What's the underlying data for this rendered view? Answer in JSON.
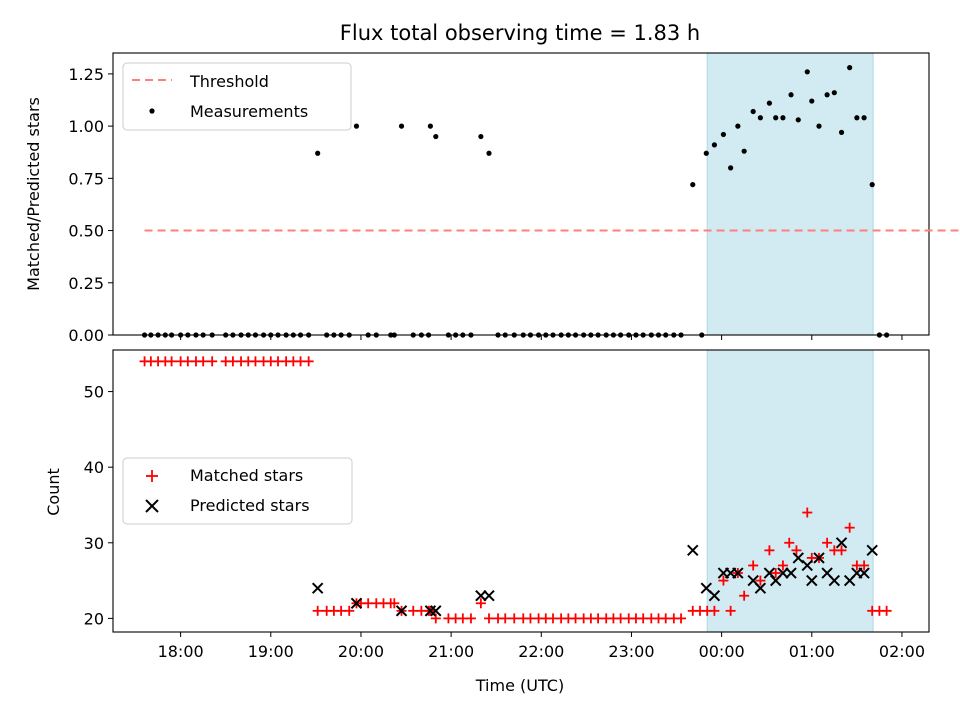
{
  "chart_data": {
    "type": "scatter",
    "title": "Flux total observing time = 1.83 h",
    "x_axis": {
      "label": "Time (UTC)",
      "unit": "hours since 00:00 UTC of first night (values >24 are after midnight)",
      "range": [
        17.25,
        26.3
      ],
      "ticks": [
        {
          "v": 18,
          "label": "18:00"
        },
        {
          "v": 19,
          "label": "19:00"
        },
        {
          "v": 20,
          "label": "20:00"
        },
        {
          "v": 21,
          "label": "21:00"
        },
        {
          "v": 22,
          "label": "22:00"
        },
        {
          "v": 23,
          "label": "23:00"
        },
        {
          "v": 24,
          "label": "00:00"
        },
        {
          "v": 25,
          "label": "01:00"
        },
        {
          "v": 26,
          "label": "02:00"
        }
      ]
    },
    "shaded_span": {
      "x0": 23.84,
      "x1": 25.68,
      "color": "#add8e6"
    },
    "top_panel": {
      "ylabel": "Matched/Predicted stars",
      "ylim": [
        0,
        1.35
      ],
      "yticks": [
        "0.00",
        "0.25",
        "0.50",
        "0.75",
        "1.00",
        "1.25"
      ],
      "threshold": {
        "name": "Threshold",
        "y": 0.5,
        "x": [
          17.6,
          26.85
        ],
        "color": "#ff7f7f"
      },
      "measurements": {
        "name": "Measurements",
        "color": "#000000",
        "points": [
          [
            17.6,
            0
          ],
          [
            17.67,
            0
          ],
          [
            17.75,
            0
          ],
          [
            17.83,
            0
          ],
          [
            17.9,
            0
          ],
          [
            18.0,
            0
          ],
          [
            18.08,
            0
          ],
          [
            18.17,
            0
          ],
          [
            18.25,
            0
          ],
          [
            18.35,
            0
          ],
          [
            18.5,
            0
          ],
          [
            18.58,
            0
          ],
          [
            18.67,
            0
          ],
          [
            18.75,
            0
          ],
          [
            18.83,
            0
          ],
          [
            18.92,
            0
          ],
          [
            19.0,
            0
          ],
          [
            19.08,
            0
          ],
          [
            19.17,
            0
          ],
          [
            19.25,
            0
          ],
          [
            19.33,
            0
          ],
          [
            19.42,
            0
          ],
          [
            19.52,
            0.87
          ],
          [
            19.62,
            0
          ],
          [
            19.7,
            0
          ],
          [
            19.78,
            0
          ],
          [
            19.87,
            0
          ],
          [
            19.95,
            1.0
          ],
          [
            20.08,
            0
          ],
          [
            20.17,
            0
          ],
          [
            20.33,
            0
          ],
          [
            20.37,
            0
          ],
          [
            20.45,
            1.0
          ],
          [
            20.58,
            0
          ],
          [
            20.67,
            0
          ],
          [
            20.75,
            0
          ],
          [
            20.77,
            1.0
          ],
          [
            20.83,
            0.95
          ],
          [
            20.97,
            0
          ],
          [
            21.05,
            0
          ],
          [
            21.13,
            0
          ],
          [
            21.22,
            0
          ],
          [
            21.33,
            0.95
          ],
          [
            21.42,
            0.87
          ],
          [
            21.52,
            0
          ],
          [
            21.6,
            0
          ],
          [
            21.7,
            0
          ],
          [
            21.8,
            0
          ],
          [
            21.88,
            0
          ],
          [
            21.97,
            0
          ],
          [
            22.05,
            0
          ],
          [
            22.13,
            0
          ],
          [
            22.22,
            0
          ],
          [
            22.3,
            0
          ],
          [
            22.38,
            0
          ],
          [
            22.47,
            0
          ],
          [
            22.55,
            0
          ],
          [
            22.63,
            0
          ],
          [
            22.72,
            0
          ],
          [
            22.8,
            0
          ],
          [
            22.88,
            0
          ],
          [
            22.97,
            0
          ],
          [
            23.05,
            0
          ],
          [
            23.13,
            0
          ],
          [
            23.22,
            0
          ],
          [
            23.3,
            0
          ],
          [
            23.38,
            0
          ],
          [
            23.47,
            0
          ],
          [
            23.55,
            0
          ],
          [
            23.68,
            0.72
          ],
          [
            23.78,
            0
          ],
          [
            23.83,
            0.87
          ],
          [
            23.92,
            0.91
          ],
          [
            24.02,
            0.96
          ],
          [
            24.1,
            0.8
          ],
          [
            24.18,
            1.0
          ],
          [
            24.25,
            0.88
          ],
          [
            24.35,
            1.07
          ],
          [
            24.43,
            1.04
          ],
          [
            24.53,
            1.11
          ],
          [
            24.6,
            1.04
          ],
          [
            24.68,
            1.04
          ],
          [
            24.77,
            1.15
          ],
          [
            24.85,
            1.03
          ],
          [
            24.95,
            1.26
          ],
          [
            25.0,
            1.12
          ],
          [
            25.08,
            1.0
          ],
          [
            25.17,
            1.15
          ],
          [
            25.25,
            1.16
          ],
          [
            25.33,
            0.97
          ],
          [
            25.42,
            1.28
          ],
          [
            25.5,
            1.04
          ],
          [
            25.58,
            1.04
          ],
          [
            25.67,
            0.72
          ],
          [
            25.75,
            0
          ],
          [
            25.83,
            0
          ]
        ]
      },
      "legend": {
        "placement": "upper-left",
        "entries": [
          "Threshold",
          "Measurements"
        ]
      }
    },
    "bottom_panel": {
      "ylabel": "Count",
      "ylim": [
        18.2,
        55.5
      ],
      "yticks": [
        "20",
        "30",
        "40",
        "50"
      ],
      "matched": {
        "name": "Matched stars",
        "color": "#ff0000",
        "marker": "plus",
        "points": [
          [
            17.6,
            54
          ],
          [
            17.67,
            54
          ],
          [
            17.75,
            54
          ],
          [
            17.83,
            54
          ],
          [
            17.9,
            54
          ],
          [
            18.0,
            54
          ],
          [
            18.08,
            54
          ],
          [
            18.17,
            54
          ],
          [
            18.25,
            54
          ],
          [
            18.35,
            54
          ],
          [
            18.5,
            54
          ],
          [
            18.58,
            54
          ],
          [
            18.67,
            54
          ],
          [
            18.75,
            54
          ],
          [
            18.83,
            54
          ],
          [
            18.92,
            54
          ],
          [
            19.0,
            54
          ],
          [
            19.08,
            54
          ],
          [
            19.17,
            54
          ],
          [
            19.25,
            54
          ],
          [
            19.33,
            54
          ],
          [
            19.42,
            54
          ],
          [
            19.52,
            21
          ],
          [
            19.62,
            21
          ],
          [
            19.7,
            21
          ],
          [
            19.78,
            21
          ],
          [
            19.87,
            21
          ],
          [
            19.95,
            22
          ],
          [
            20.0,
            22
          ],
          [
            20.08,
            22
          ],
          [
            20.17,
            22
          ],
          [
            20.25,
            22
          ],
          [
            20.33,
            22
          ],
          [
            20.37,
            22
          ],
          [
            20.45,
            21
          ],
          [
            20.58,
            21
          ],
          [
            20.67,
            21
          ],
          [
            20.75,
            21
          ],
          [
            20.77,
            21
          ],
          [
            20.83,
            20
          ],
          [
            20.97,
            20
          ],
          [
            21.05,
            20
          ],
          [
            21.13,
            20
          ],
          [
            21.22,
            20
          ],
          [
            21.33,
            22
          ],
          [
            21.42,
            20
          ],
          [
            21.52,
            20
          ],
          [
            21.6,
            20
          ],
          [
            21.7,
            20
          ],
          [
            21.8,
            20
          ],
          [
            21.88,
            20
          ],
          [
            21.97,
            20
          ],
          [
            22.05,
            20
          ],
          [
            22.13,
            20
          ],
          [
            22.22,
            20
          ],
          [
            22.3,
            20
          ],
          [
            22.38,
            20
          ],
          [
            22.47,
            20
          ],
          [
            22.55,
            20
          ],
          [
            22.63,
            20
          ],
          [
            22.72,
            20
          ],
          [
            22.8,
            20
          ],
          [
            22.88,
            20
          ],
          [
            22.97,
            20
          ],
          [
            23.05,
            20
          ],
          [
            23.13,
            20
          ],
          [
            23.22,
            20
          ],
          [
            23.3,
            20
          ],
          [
            23.38,
            20
          ],
          [
            23.47,
            20
          ],
          [
            23.55,
            20
          ],
          [
            23.68,
            21
          ],
          [
            23.76,
            21
          ],
          [
            23.84,
            21
          ],
          [
            23.92,
            21
          ],
          [
            24.02,
            25
          ],
          [
            24.1,
            21
          ],
          [
            24.18,
            26
          ],
          [
            24.25,
            23
          ],
          [
            24.35,
            27
          ],
          [
            24.43,
            25
          ],
          [
            24.53,
            29
          ],
          [
            24.6,
            26
          ],
          [
            24.68,
            27
          ],
          [
            24.75,
            30
          ],
          [
            24.83,
            29
          ],
          [
            24.95,
            34
          ],
          [
            25.0,
            28
          ],
          [
            25.08,
            28
          ],
          [
            25.17,
            30
          ],
          [
            25.25,
            29
          ],
          [
            25.33,
            29
          ],
          [
            25.42,
            32
          ],
          [
            25.5,
            27
          ],
          [
            25.58,
            27
          ],
          [
            25.67,
            21
          ],
          [
            25.75,
            21
          ],
          [
            25.83,
            21
          ]
        ]
      },
      "predicted": {
        "name": "Predicted stars",
        "color": "#000000",
        "marker": "x",
        "points": [
          [
            19.52,
            24
          ],
          [
            19.95,
            22
          ],
          [
            20.45,
            21
          ],
          [
            20.77,
            21
          ],
          [
            20.83,
            21
          ],
          [
            21.33,
            23
          ],
          [
            21.42,
            23
          ],
          [
            23.68,
            29
          ],
          [
            23.83,
            24
          ],
          [
            23.92,
            23
          ],
          [
            24.02,
            26
          ],
          [
            24.1,
            26
          ],
          [
            24.18,
            26
          ],
          [
            24.35,
            25
          ],
          [
            24.43,
            24
          ],
          [
            24.53,
            26
          ],
          [
            24.6,
            25
          ],
          [
            24.68,
            26
          ],
          [
            24.77,
            26
          ],
          [
            24.85,
            28
          ],
          [
            24.95,
            27
          ],
          [
            25.0,
            25
          ],
          [
            25.08,
            28
          ],
          [
            25.17,
            26
          ],
          [
            25.25,
            25
          ],
          [
            25.33,
            30
          ],
          [
            25.42,
            25
          ],
          [
            25.5,
            26
          ],
          [
            25.58,
            26
          ],
          [
            25.67,
            29
          ]
        ]
      },
      "legend": {
        "placement": "center-left",
        "entries": [
          "Matched stars",
          "Predicted stars"
        ]
      }
    }
  }
}
